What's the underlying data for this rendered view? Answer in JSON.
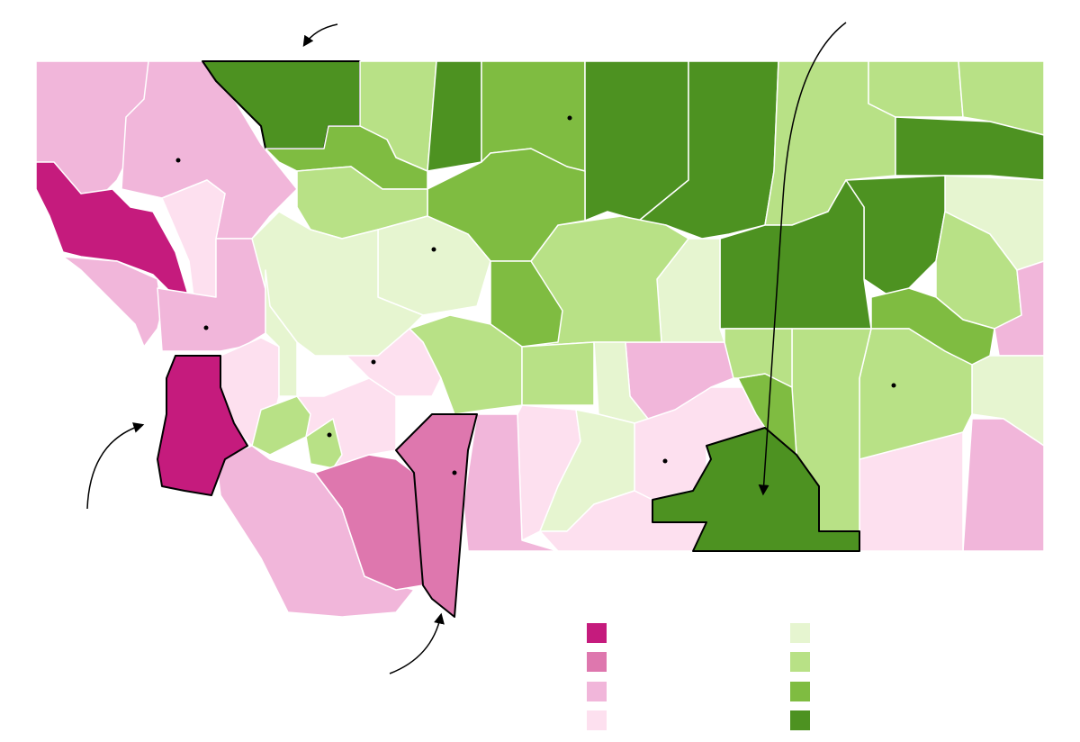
{
  "legend": {
    "colors": [
      "#c51b7d",
      "#de77ae",
      "#f1b6da",
      "#fde0ef",
      "#e6f5d0",
      "#b8e186",
      "#7fbc41",
      "#4d9221"
    ]
  }
}
